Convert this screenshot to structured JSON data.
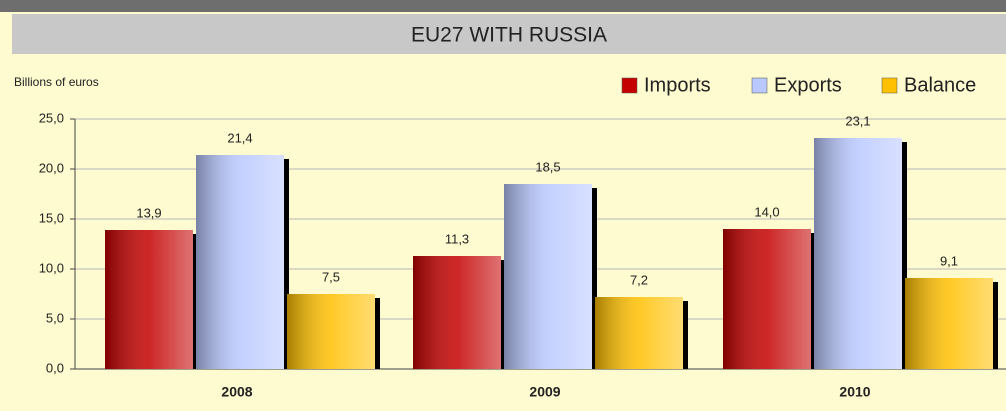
{
  "chart_data": {
    "type": "bar",
    "title": "EU27 WITH RUSSIA",
    "y_label": "Billions of euros",
    "categories": [
      "2008",
      "2009",
      "2010"
    ],
    "series": [
      {
        "name": "Imports",
        "color": "#c40000",
        "values": [
          13.9,
          11.3,
          14.0
        ],
        "value_labels": [
          "13,9",
          "11,3",
          "14,0"
        ]
      },
      {
        "name": "Exports",
        "color": "#b9c8ff",
        "values": [
          21.4,
          18.5,
          23.1
        ],
        "value_labels": [
          "21,4",
          "18,5",
          "23,1"
        ]
      },
      {
        "name": "Balance",
        "color": "#ffc000",
        "values": [
          7.5,
          7.2,
          9.1
        ],
        "value_labels": [
          "7,5",
          "7,2",
          "9,1"
        ]
      }
    ],
    "ylim": [
      0,
      25
    ],
    "yticks": [
      {
        "value": 0,
        "label": "0,0"
      },
      {
        "value": 5,
        "label": "5,0"
      },
      {
        "value": 10,
        "label": "10,0"
      },
      {
        "value": 15,
        "label": "15,0"
      },
      {
        "value": 20,
        "label": "20,0"
      },
      {
        "value": 25,
        "label": "25,0"
      }
    ],
    "grid": true,
    "legend": "top-right"
  }
}
